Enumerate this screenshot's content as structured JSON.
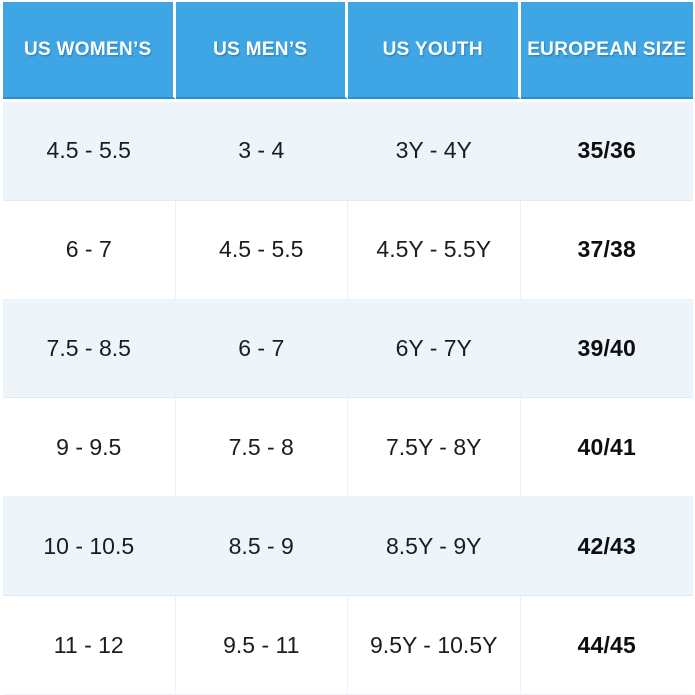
{
  "colors": {
    "header_bg": "#3fa6e6",
    "header_border_bottom": "#2d8dcb",
    "header_text": "#ffffff",
    "row_alt_bg": "#edf5fb",
    "row_bg": "#ffffff",
    "body_text": "#1c1c1e"
  },
  "chart_data": {
    "type": "table",
    "headers": [
      "US WOMEN’S",
      "US MEN’S",
      "US YOUTH",
      "EUROPEAN SIZE"
    ],
    "rows": [
      [
        "4.5 - 5.5",
        "3 - 4",
        "3Y - 4Y",
        "35/36"
      ],
      [
        "6 - 7",
        "4.5 - 5.5",
        "4.5Y - 5.5Y",
        "37/38"
      ],
      [
        "7.5 - 8.5",
        "6 - 7",
        "6Y - 7Y",
        "39/40"
      ],
      [
        "9 - 9.5",
        "7.5 - 8",
        "7.5Y - 8Y",
        "40/41"
      ],
      [
        "10 - 10.5",
        "8.5 - 9",
        "8.5Y - 9Y",
        "42/43"
      ],
      [
        "11 - 12",
        "9.5 - 11",
        "9.5Y - 10.5Y",
        "44/45"
      ]
    ]
  }
}
